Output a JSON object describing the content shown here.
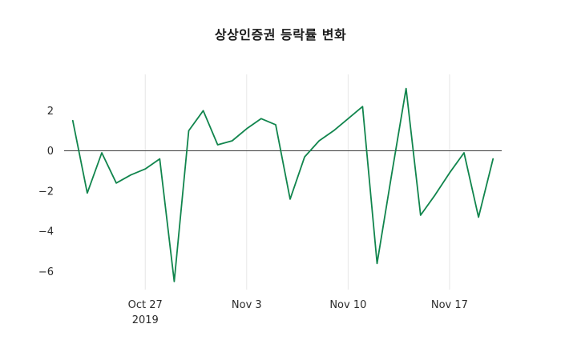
{
  "chart": {
    "title": "상상인증권 등락률 변화"
  },
  "chart_data": {
    "type": "line",
    "title": "상상인증권 등락률 변화",
    "xlabel": "",
    "ylabel": "",
    "legend": "none",
    "grid": "vertical-only",
    "line_color": "#11854d",
    "zero_line_color": "#3c3c3c",
    "grid_color": "#e6e6e6",
    "ylim": [
      -6.9,
      3.8
    ],
    "yticks": [
      2,
      0,
      -2,
      -4,
      -6
    ],
    "xticks": [
      {
        "index": 5,
        "label": "Oct 27",
        "sublabel": "2019"
      },
      {
        "index": 12,
        "label": "Nov 3",
        "sublabel": ""
      },
      {
        "index": 19,
        "label": "Nov 10",
        "sublabel": ""
      },
      {
        "index": 26,
        "label": "Nov 17",
        "sublabel": ""
      }
    ],
    "x": [
      "2019-10-22",
      "2019-10-23",
      "2019-10-24",
      "2019-10-25",
      "2019-10-26",
      "2019-10-27",
      "2019-10-28",
      "2019-10-29",
      "2019-10-30",
      "2019-10-31",
      "2019-11-01",
      "2019-11-02",
      "2019-11-03",
      "2019-11-04",
      "2019-11-05",
      "2019-11-06",
      "2019-11-07",
      "2019-11-08",
      "2019-11-09",
      "2019-11-10",
      "2019-11-11",
      "2019-11-12",
      "2019-11-13",
      "2019-11-14",
      "2019-11-15",
      "2019-11-16",
      "2019-11-17",
      "2019-11-18",
      "2019-11-19",
      "2019-11-20"
    ],
    "y": [
      1.5,
      -2.1,
      -0.1,
      -1.6,
      -1.2,
      -0.9,
      -0.4,
      -6.5,
      1.0,
      2.0,
      0.3,
      0.5,
      1.1,
      1.6,
      1.3,
      -2.4,
      -0.3,
      0.5,
      1.0,
      1.6,
      2.2,
      -5.6,
      -1.2,
      3.1,
      -3.2,
      -2.2,
      -1.1,
      -0.1,
      -3.3,
      -0.4
    ]
  }
}
